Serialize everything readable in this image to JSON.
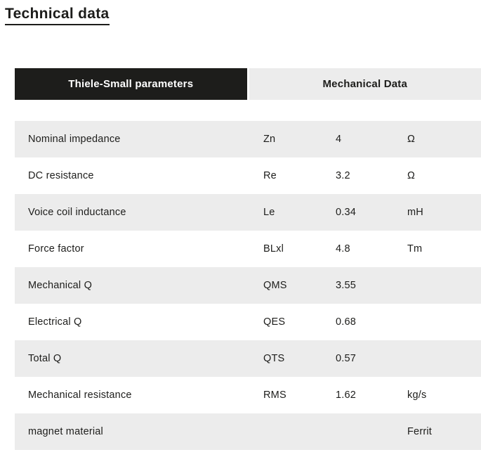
{
  "page": {
    "title": "Technical data"
  },
  "tabs": [
    {
      "label": "Thiele-Small parameters",
      "active": true
    },
    {
      "label": "Mechanical Data",
      "active": false
    }
  ],
  "table": {
    "rows": [
      {
        "label": "Nominal impedance",
        "symbol": "Zn",
        "value": "4",
        "unit": "Ω"
      },
      {
        "label": "DC resistance",
        "symbol": "Re",
        "value": "3.2",
        "unit": "Ω"
      },
      {
        "label": "Voice coil inductance",
        "symbol": "Le",
        "value": "0.34",
        "unit": "mH"
      },
      {
        "label": "Force factor",
        "symbol": "BLxl",
        "value": "4.8",
        "unit": "Tm"
      },
      {
        "label": "Mechanical Q",
        "symbol": "QMS",
        "value": "3.55",
        "unit": ""
      },
      {
        "label": "Electrical Q",
        "symbol": "QES",
        "value": "0.68",
        "unit": ""
      },
      {
        "label": "Total Q",
        "symbol": "QTS",
        "value": "0.57",
        "unit": ""
      },
      {
        "label": "Mechanical resistance",
        "symbol": "RMS",
        "value": "1.62",
        "unit": "kg/s"
      },
      {
        "label": "magnet material",
        "symbol": "",
        "value": "",
        "unit": "Ferrit"
      }
    ]
  },
  "colors": {
    "accent_black": "#1d1d1b",
    "row_stripe_gray": "#ececec",
    "tab_inactive_bg": "#ececec",
    "text": "#1d1d1b"
  }
}
